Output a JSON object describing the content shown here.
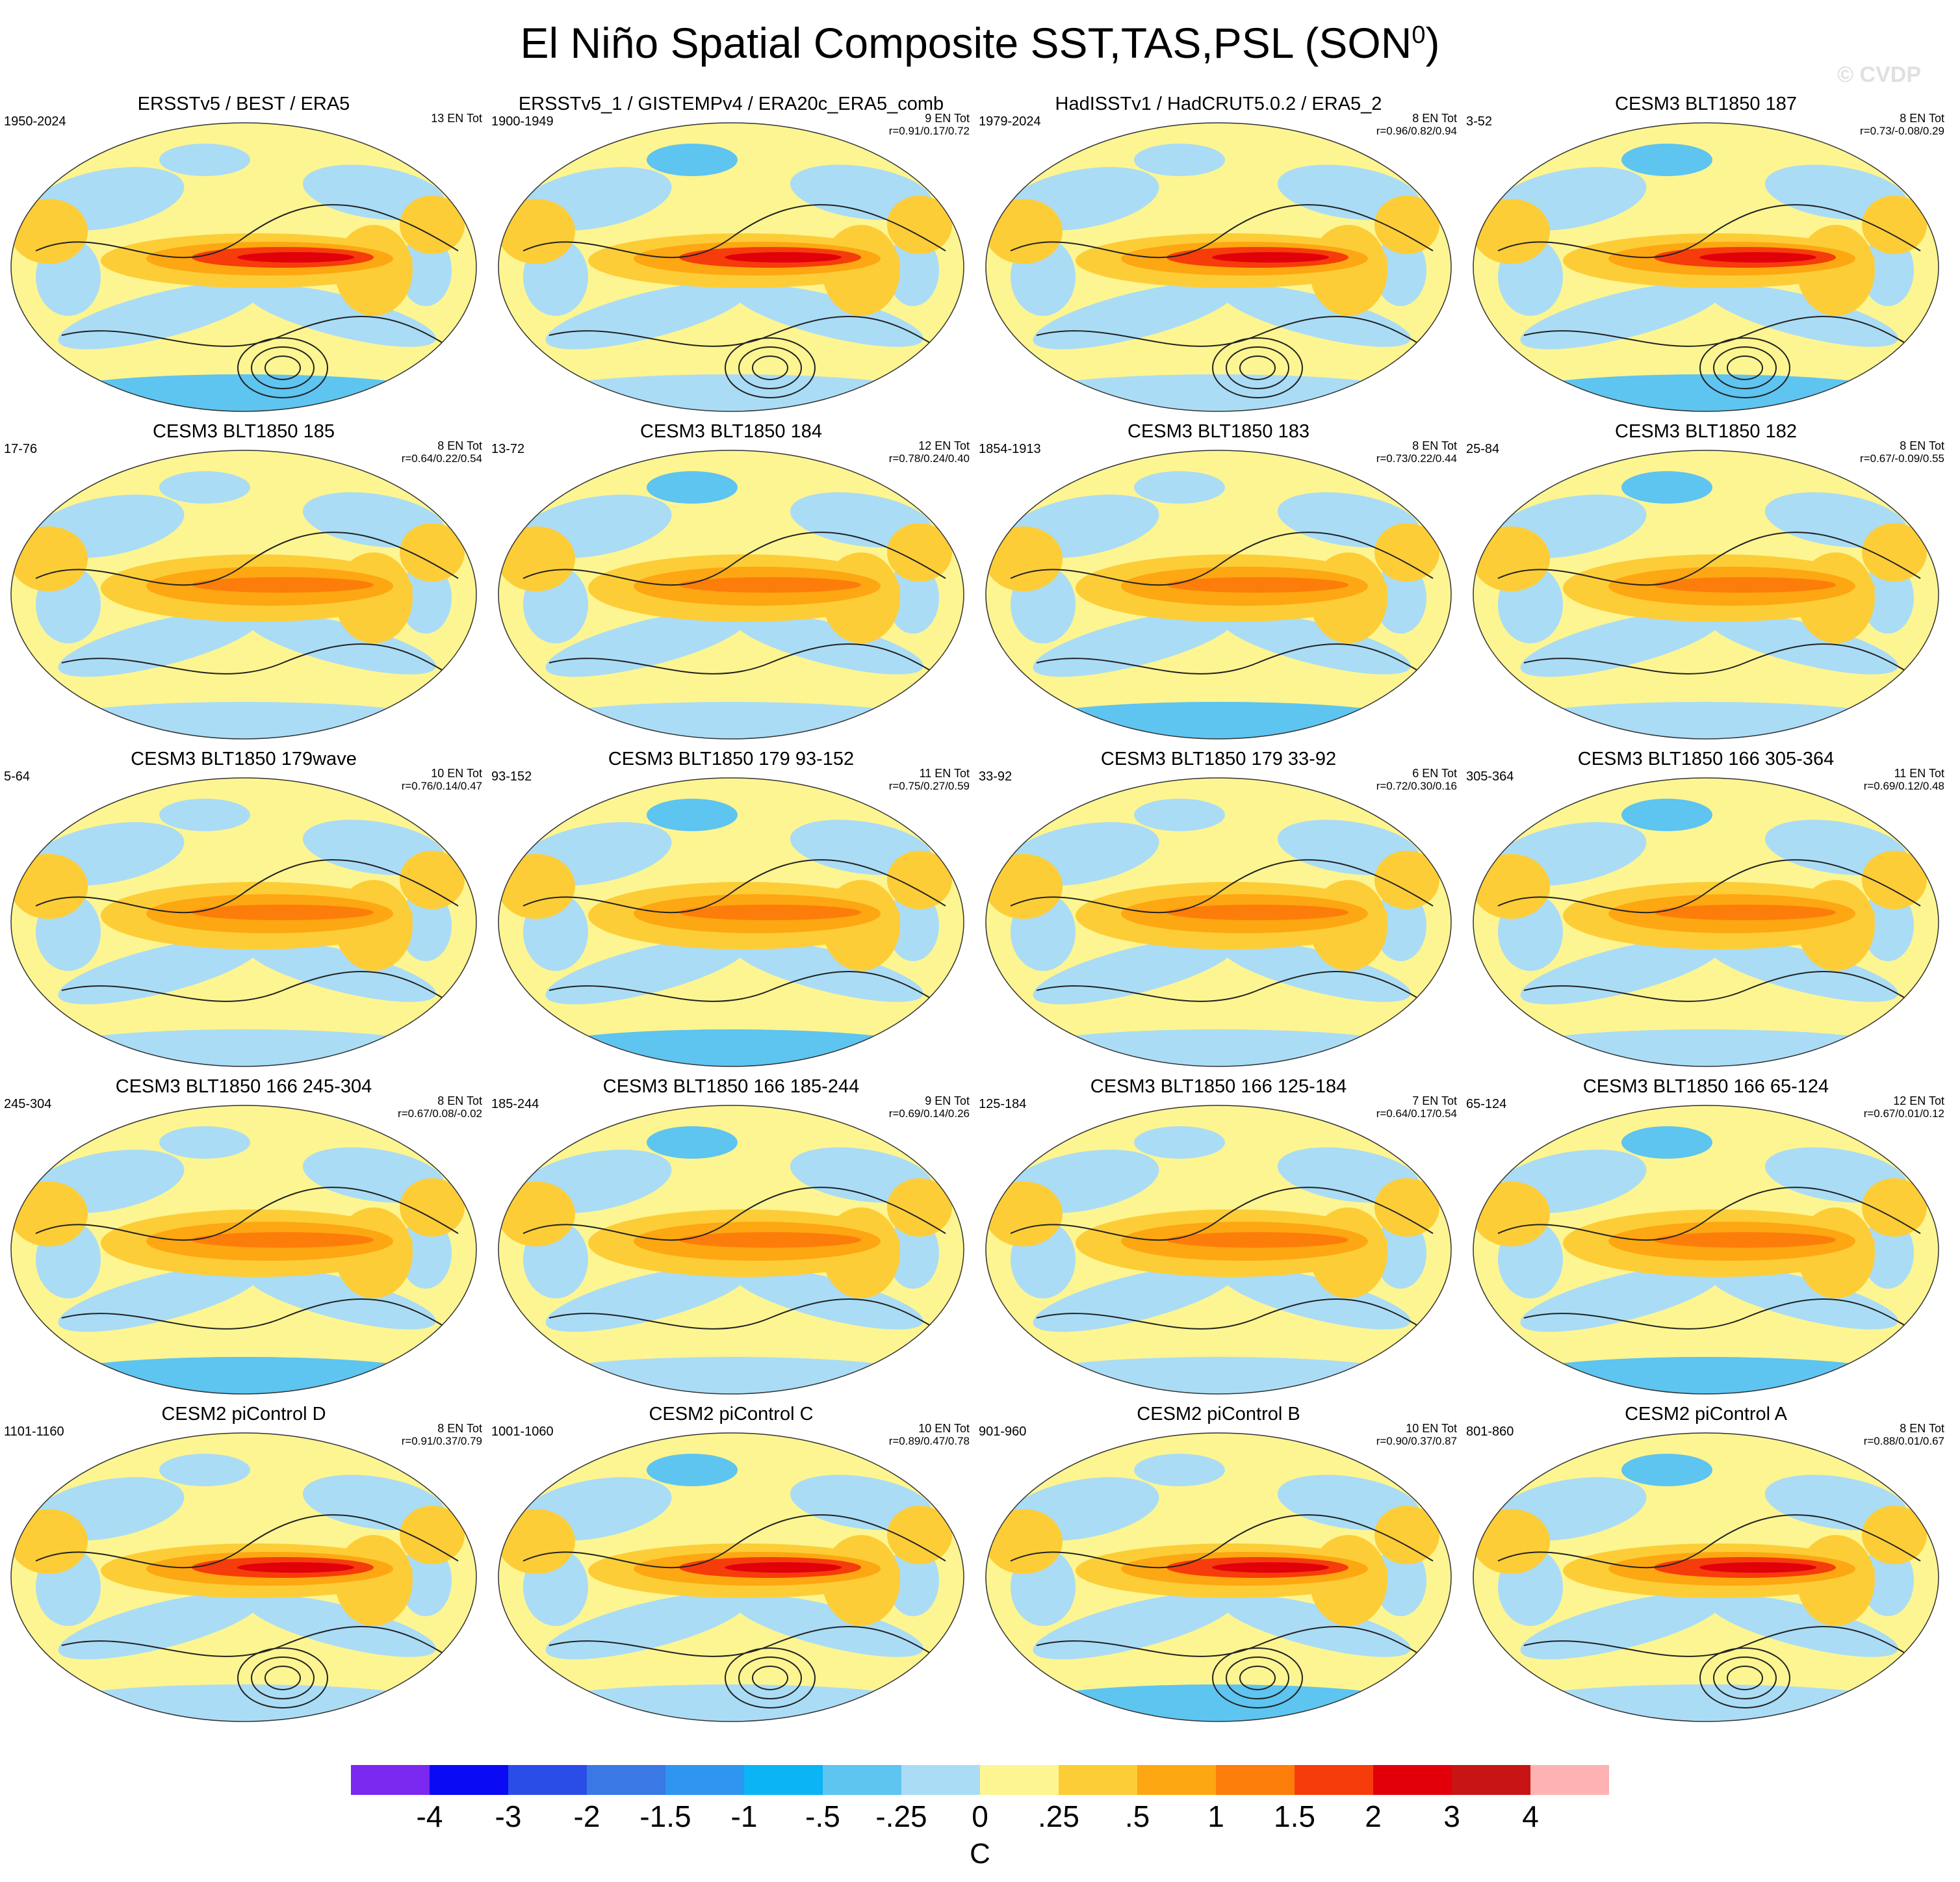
{
  "title": {
    "main": "El Niño Spatial Composite SST,TAS,PSL (SON",
    "sup": "0",
    "close": ")"
  },
  "copyright": "© CVDP",
  "panels": [
    {
      "title": "ERSSTv5 / BEST / ERA5",
      "years": "1950-2024",
      "count": "13 EN Tot",
      "corr": ""
    },
    {
      "title": "ERSSTv5_1 / GISTEMPv4 / ERA20c_ERA5_comb",
      "years": "1900-1949",
      "count": "9 EN Tot",
      "corr": "r=0.91/0.17/0.72"
    },
    {
      "title": "HadISSTv1 / HadCRUT5.0.2 / ERA5_2",
      "years": "1979-2024",
      "count": "8 EN Tot",
      "corr": "r=0.96/0.82/0.94"
    },
    {
      "title": "CESM3 BLT1850 187",
      "years": "3-52",
      "count": "8 EN Tot",
      "corr": "r=0.73/-0.08/0.29"
    },
    {
      "title": "CESM3 BLT1850 185",
      "years": "17-76",
      "count": "8 EN Tot",
      "corr": "r=0.64/0.22/0.54"
    },
    {
      "title": "CESM3 BLT1850 184",
      "years": "13-72",
      "count": "12 EN Tot",
      "corr": "r=0.78/0.24/0.40"
    },
    {
      "title": "CESM3 BLT1850 183",
      "years": "1854-1913",
      "count": "8 EN Tot",
      "corr": "r=0.73/0.22/0.44"
    },
    {
      "title": "CESM3 BLT1850 182",
      "years": "25-84",
      "count": "8 EN Tot",
      "corr": "r=0.67/-0.09/0.55"
    },
    {
      "title": "CESM3 BLT1850 179wave",
      "years": "5-64",
      "count": "10 EN Tot",
      "corr": "r=0.76/0.14/0.47"
    },
    {
      "title": "CESM3 BLT1850 179 93-152",
      "years": "93-152",
      "count": "11 EN Tot",
      "corr": "r=0.75/0.27/0.59"
    },
    {
      "title": "CESM3 BLT1850 179 33-92",
      "years": "33-92",
      "count": "6 EN Tot",
      "corr": "r=0.72/0.30/0.16"
    },
    {
      "title": "CESM3 BLT1850 166 305-364",
      "years": "305-364",
      "count": "11 EN Tot",
      "corr": "r=0.69/0.12/0.48"
    },
    {
      "title": "CESM3 BLT1850 166 245-304",
      "years": "245-304",
      "count": "8 EN Tot",
      "corr": "r=0.67/0.08/-0.02"
    },
    {
      "title": "CESM3 BLT1850 166 185-244",
      "years": "185-244",
      "count": "9 EN Tot",
      "corr": "r=0.69/0.14/0.26"
    },
    {
      "title": "CESM3 BLT1850 166 125-184",
      "years": "125-184",
      "count": "7 EN Tot",
      "corr": "r=0.64/0.17/0.54"
    },
    {
      "title": "CESM3 BLT1850 166 65-124",
      "years": "65-124",
      "count": "12 EN Tot",
      "corr": "r=0.67/0.01/0.12"
    },
    {
      "title": "CESM2 piControl D",
      "years": "1101-1160",
      "count": "8 EN Tot",
      "corr": "r=0.91/0.37/0.79"
    },
    {
      "title": "CESM2 piControl C",
      "years": "1001-1060",
      "count": "10 EN Tot",
      "corr": "r=0.89/0.47/0.78"
    },
    {
      "title": "CESM2 piControl B",
      "years": "901-960",
      "count": "10 EN Tot",
      "corr": "r=0.90/0.37/0.87"
    },
    {
      "title": "CESM2 piControl A",
      "years": "801-860",
      "count": "8 EN Tot",
      "corr": "r=0.88/0.01/0.67"
    }
  ],
  "colorbar": {
    "colors": [
      "#7a28f0",
      "#0a0af5",
      "#2a4de8",
      "#3a78e6",
      "#2e96f0",
      "#0ab4f5",
      "#5ec4f0",
      "#aadcf5",
      "#fdf591",
      "#fdcd37",
      "#fda712",
      "#fd7d0a",
      "#f53c0a",
      "#e1000a",
      "#c81414",
      "#ffb2b4"
    ],
    "labels": [
      "-4",
      "-3",
      "-2",
      "-1.5",
      "-1",
      "-.5",
      "-.25",
      "0",
      ".25",
      ".5",
      "1",
      "1.5",
      "2",
      "3",
      "4"
    ],
    "unit": "C"
  }
}
